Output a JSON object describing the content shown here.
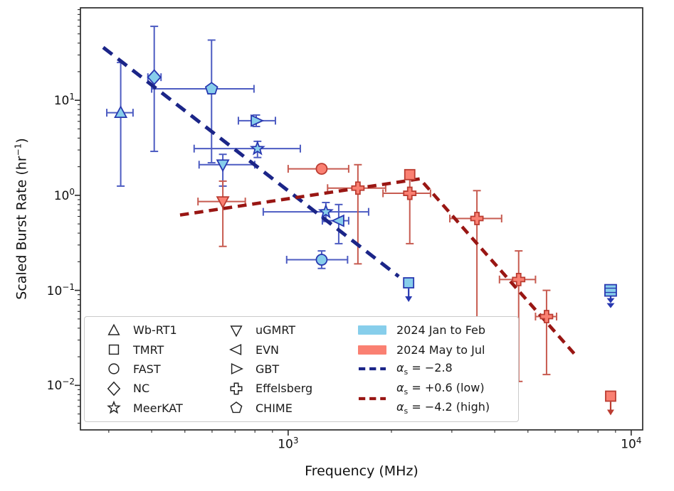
{
  "chart_data": {
    "type": "scatter",
    "title": "",
    "xlabel": "Frequency (MHz)",
    "ylabel": "Scaled Burst Rate (hr⁻¹)",
    "ylabel_parts": {
      "pre": "Scaled Burst Rate (hr",
      "sup": "−1",
      "post": ")"
    },
    "x_scale": "log",
    "y_scale": "log",
    "xlim": [
      248,
      10800
    ],
    "ylim": [
      0.0034,
      94
    ],
    "grid": false,
    "legend_position": "lower-left",
    "x_ticks": [
      {
        "value": 1000,
        "base": "10",
        "exp": "3"
      },
      {
        "value": 10000,
        "base": "10",
        "exp": "4"
      }
    ],
    "y_ticks": [
      {
        "value": 10,
        "base": "10",
        "exp": "1"
      },
      {
        "value": 1,
        "base": "10",
        "exp": "0"
      },
      {
        "value": 0.1,
        "base": "10",
        "exp": "−1"
      },
      {
        "value": 0.01,
        "base": "10",
        "exp": "−2"
      }
    ],
    "x_minor_ticks": [
      300,
      400,
      500,
      600,
      700,
      800,
      900,
      2000,
      3000,
      4000,
      5000,
      6000,
      7000,
      8000,
      9000
    ],
    "colors": {
      "frame": "#2b2b2b",
      "text": "#111111",
      "jan": {
        "face": "#87CEEB",
        "edge": "#2838b0",
        "err": "#4d5cc2"
      },
      "may": {
        "face": "#FA8072",
        "edge": "#bb3c31",
        "err": "#c75b50"
      },
      "blue_line": "#1b2588",
      "red_line": "#991613",
      "legend_border": "#cbcbcb"
    },
    "series": [
      {
        "key": "jan",
        "label": "2024 Jan to Feb"
      },
      {
        "key": "may",
        "label": "2024 May to Jul"
      }
    ],
    "points": [
      {
        "series": "jan",
        "telescope": "Wb-RT1",
        "marker": "triangle-up",
        "freq_mhz": 325,
        "freq_err": [
          296,
          353
        ],
        "rate": 7.4,
        "rate_err": [
          1.25,
          25
        ],
        "upper_limit": 0
      },
      {
        "series": "jan",
        "telescope": "NC",
        "marker": "diamond",
        "freq_mhz": 407,
        "freq_err": [
          390,
          426
        ],
        "rate": 17.5,
        "rate_err": [
          2.9,
          60
        ],
        "upper_limit": 0
      },
      {
        "series": "jan",
        "telescope": "CHIME",
        "marker": "pentagon",
        "freq_mhz": 598,
        "freq_err": [
          400,
          795
        ],
        "rate": 13.2,
        "rate_err": [
          2.2,
          43
        ],
        "upper_limit": 0
      },
      {
        "series": "jan",
        "telescope": "GBT",
        "marker": "triangle-right",
        "freq_mhz": 807,
        "freq_err": [
          716,
          918
        ],
        "rate": 6.1,
        "rate_err": [
          5.3,
          7.0
        ],
        "upper_limit": 0
      },
      {
        "series": "jan",
        "telescope": "MeerKAT",
        "marker": "star",
        "freq_mhz": 814,
        "freq_err": [
          532,
          1085
        ],
        "rate": 3.1,
        "rate_err": [
          2.5,
          3.7
        ],
        "upper_limit": 0
      },
      {
        "series": "jan",
        "telescope": "uGMRT",
        "marker": "triangle-down",
        "freq_mhz": 645,
        "freq_err": [
          550,
          799
        ],
        "rate": 2.1,
        "rate_err": [
          1.25,
          2.7
        ],
        "upper_limit": 0
      },
      {
        "series": "jan",
        "telescope": "MeerKAT",
        "marker": "star",
        "freq_mhz": 1288,
        "freq_err": [
          846,
          1716
        ],
        "rate": 0.67,
        "rate_err": [
          0.53,
          0.84
        ],
        "upper_limit": 0
      },
      {
        "series": "jan",
        "telescope": "EVN",
        "marker": "triangle-left",
        "freq_mhz": 1404,
        "freq_err": [
          1258,
          1501
        ],
        "rate": 0.54,
        "rate_err": [
          0.31,
          0.8
        ],
        "upper_limit": 0
      },
      {
        "series": "jan",
        "telescope": "FAST",
        "marker": "circle",
        "freq_mhz": 1252,
        "freq_err": [
          990,
          1490
        ],
        "rate": 0.21,
        "rate_err": [
          0.17,
          0.26
        ],
        "upper_limit": 0
      },
      {
        "series": "jan",
        "telescope": "TMRT",
        "marker": "square",
        "freq_mhz": 2245,
        "freq_err": null,
        "rate": 0.12,
        "rate_err": null,
        "upper_limit": 1
      },
      {
        "series": "jan",
        "telescope": "TMRT",
        "marker": "square-stack",
        "freq_mhz": 8710,
        "freq_err": null,
        "rate": 0.1,
        "rate_err": null,
        "upper_limit": 2
      },
      {
        "series": "may",
        "telescope": "uGMRT",
        "marker": "triangle-down",
        "freq_mhz": 645,
        "freq_err": [
          546,
          750
        ],
        "rate": 0.86,
        "rate_err": [
          0.29,
          1.41
        ],
        "upper_limit": 0
      },
      {
        "series": "may",
        "telescope": "FAST",
        "marker": "circle",
        "freq_mhz": 1252,
        "freq_err": [
          1000,
          1501
        ],
        "rate": 1.9,
        "rate_err": null,
        "upper_limit": 0
      },
      {
        "series": "may",
        "telescope": "Effelsberg",
        "marker": "plus",
        "freq_mhz": 1597,
        "freq_err": [
          1303,
          1924
        ],
        "rate": 1.19,
        "rate_err": [
          0.19,
          2.1
        ],
        "upper_limit": 0
      },
      {
        "series": "may",
        "telescope": "TMRT",
        "marker": "square",
        "freq_mhz": 2262,
        "freq_err": null,
        "rate": 1.65,
        "rate_err": null,
        "upper_limit": 0
      },
      {
        "series": "may",
        "telescope": "Effelsberg",
        "marker": "plus",
        "freq_mhz": 2262,
        "freq_err": [
          1890,
          2600
        ],
        "rate": 1.05,
        "rate_err": [
          0.31,
          1.5
        ],
        "upper_limit": 0
      },
      {
        "series": "may",
        "telescope": "Effelsberg",
        "marker": "plus",
        "freq_mhz": 3550,
        "freq_err": [
          2960,
          4190
        ],
        "rate": 0.57,
        "rate_err": [
          0.051,
          1.12
        ],
        "upper_limit": 0
      },
      {
        "series": "may",
        "telescope": "Effelsberg",
        "marker": "plus",
        "freq_mhz": 4698,
        "freq_err": [
          4130,
          5260
        ],
        "rate": 0.13,
        "rate_err": [
          0.011,
          0.26
        ],
        "upper_limit": 0
      },
      {
        "series": "may",
        "telescope": "Effelsberg",
        "marker": "plus",
        "freq_mhz": 5665,
        "freq_err": [
          5260,
          6060
        ],
        "rate": 0.053,
        "rate_err": [
          0.013,
          0.1
        ],
        "upper_limit": 0
      },
      {
        "series": "may",
        "telescope": "TMRT",
        "marker": "square",
        "freq_mhz": 8710,
        "freq_err": null,
        "rate": 0.0077,
        "rate_err": null,
        "upper_limit": 1
      }
    ],
    "fit_lines": [
      {
        "name": "fit-line-blue",
        "label": "αs = −2.8",
        "slope": -2.8,
        "color": "blue_line",
        "points": [
          [
            289,
            36
          ],
          [
            2100,
            0.14
          ]
        ]
      },
      {
        "name": "fit-line-red",
        "label": "αs = +0.6 (low), αs = −4.2 (high)",
        "slope_low": 0.6,
        "slope_high": -4.2,
        "color": "red_line",
        "points": [
          [
            484,
            0.62
          ],
          [
            2420,
            1.49
          ],
          [
            6990,
            0.0195
          ]
        ]
      }
    ],
    "legend": {
      "telescopes": [
        {
          "label": "Wb-RT1",
          "marker": "triangle-up"
        },
        {
          "label": "TMRT",
          "marker": "square"
        },
        {
          "label": "FAST",
          "marker": "circle"
        },
        {
          "label": "NC",
          "marker": "diamond"
        },
        {
          "label": "MeerKAT",
          "marker": "star"
        },
        {
          "label": "uGMRT",
          "marker": "triangle-down"
        },
        {
          "label": "EVN",
          "marker": "triangle-left"
        },
        {
          "label": "GBT",
          "marker": "triangle-right"
        },
        {
          "label": "Effelsberg",
          "marker": "plus"
        },
        {
          "label": "CHIME",
          "marker": "pentagon"
        }
      ],
      "patches": [
        {
          "label": "2024 Jan to Feb",
          "color_key": "jan.face"
        },
        {
          "label": "2024 May to Jul",
          "color_key": "may.face"
        }
      ],
      "fits": [
        {
          "alpha": "α",
          "sub": "s",
          "rest": " = −2.8",
          "line": "blue_line"
        },
        {
          "alpha": "α",
          "sub": "s",
          "rest": " = +0.6 (low)",
          "line": "red_line"
        },
        {
          "alpha": "α",
          "sub": "s",
          "rest": " = −4.2 (high)",
          "line": "red_line"
        }
      ]
    }
  }
}
